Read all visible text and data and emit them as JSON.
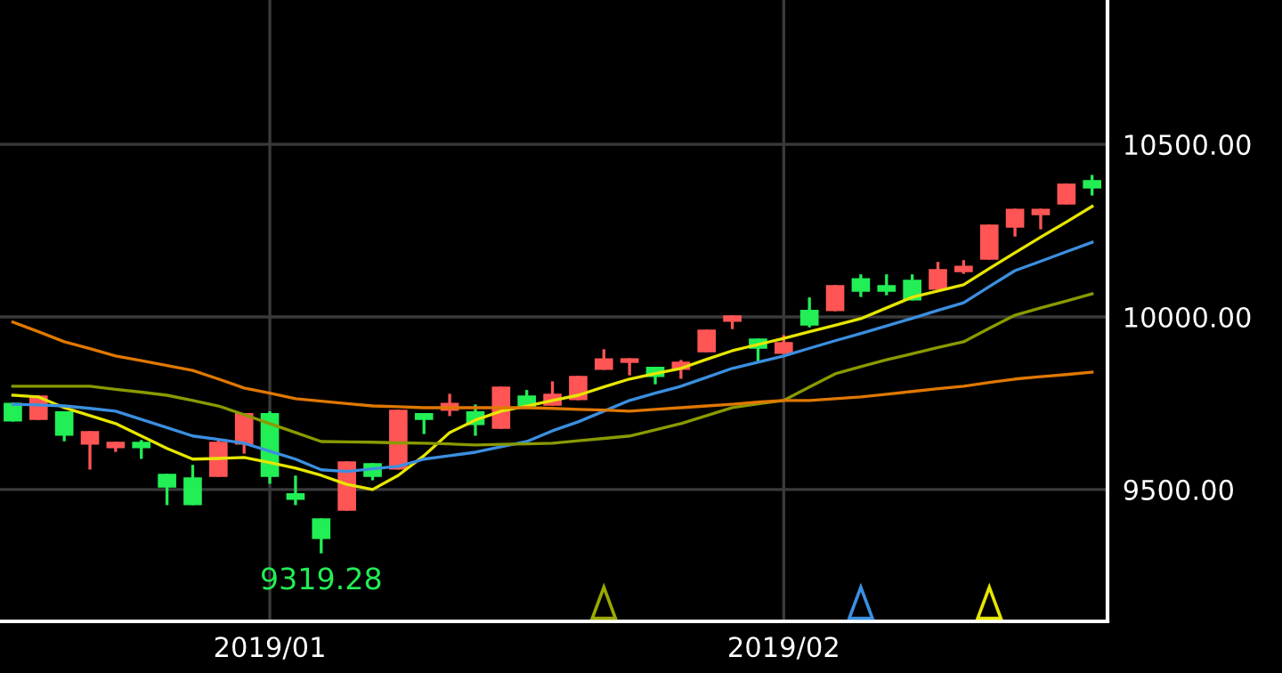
{
  "chart_data": {
    "type": "candlestick",
    "categories": [
      null,
      null,
      null,
      null,
      null,
      null,
      null,
      null,
      null,
      null,
      "2019/01",
      null,
      null,
      null,
      null,
      null,
      null,
      null,
      null,
      null,
      null,
      null,
      null,
      null,
      null,
      null,
      null,
      null,
      null,
      null,
      "2019/02",
      null,
      null,
      null,
      null,
      null,
      null,
      null,
      null,
      null,
      null,
      null,
      null
    ],
    "ohlc": [
      [
        9747,
        9747,
        9701,
        9701
      ],
      [
        9706,
        9768,
        9706,
        9768
      ],
      [
        9722,
        9722,
        9644,
        9660
      ],
      [
        9634,
        9665,
        9562,
        9665
      ],
      [
        9624,
        9634,
        9613,
        9634
      ],
      [
        9634,
        9639,
        9593,
        9624
      ],
      [
        9541,
        9541,
        9459,
        9510
      ],
      [
        9531,
        9567,
        9459,
        9459
      ],
      [
        9541,
        9639,
        9541,
        9634
      ],
      [
        9634,
        9717,
        9608,
        9717
      ],
      [
        9717,
        9722,
        9521,
        9541
      ],
      [
        9485,
        9536,
        9459,
        9474
      ],
      [
        9412,
        9412,
        9319.28,
        9361
      ],
      [
        9443,
        9577,
        9443,
        9577
      ],
      [
        9572,
        9572,
        9531,
        9541
      ],
      [
        9562,
        9727,
        9562,
        9727
      ],
      [
        9717,
        9717,
        9665,
        9706
      ],
      [
        9732,
        9773,
        9717,
        9747
      ],
      [
        9722,
        9742,
        9660,
        9691
      ],
      [
        9680,
        9794,
        9680,
        9794
      ],
      [
        9768,
        9784,
        9742,
        9742
      ],
      [
        9747,
        9809,
        9747,
        9773
      ],
      [
        9763,
        9825,
        9763,
        9825
      ],
      [
        9851,
        9902,
        9851,
        9876
      ],
      [
        9871,
        9876,
        9835,
        9876
      ],
      [
        9851,
        9851,
        9809,
        9830
      ],
      [
        9851,
        9871,
        9825,
        9866
      ],
      [
        9902,
        9959,
        9902,
        9959
      ],
      [
        9990,
        10000,
        9969,
        10000
      ],
      [
        9933,
        9933,
        9871,
        9912
      ],
      [
        9897,
        9943,
        9897,
        9923
      ],
      [
        10016,
        10052,
        9974,
        9979
      ],
      [
        10021,
        10088,
        10021,
        10088
      ],
      [
        10108,
        10119,
        10062,
        10077
      ],
      [
        10088,
        10119,
        10067,
        10077
      ],
      [
        10103,
        10119,
        10052,
        10052
      ],
      [
        10083,
        10155,
        10083,
        10134
      ],
      [
        10134,
        10160,
        10129,
        10144
      ],
      [
        10170,
        10263,
        10170,
        10263
      ],
      [
        10263,
        10309,
        10237,
        10309
      ],
      [
        10299,
        10309,
        10258,
        10309
      ],
      [
        10330,
        10382,
        10330,
        10382
      ],
      [
        10392,
        10407,
        10356,
        10376
      ]
    ],
    "series": [
      {
        "type": "line",
        "color": "#e6e600",
        "values": [
          9773,
          9768,
          9737,
          9714,
          9691,
          9655,
          9619,
          9588,
          9590,
          9593,
          9578,
          9562,
          9541,
          9515,
          9500,
          9541,
          9598,
          9665,
          9701,
          9727,
          9742,
          9758,
          9773,
          9797,
          9820,
          9836,
          9851,
          9877,
          9902,
          9920,
          9938,
          9957,
          9976,
          9995,
          10026,
          10057,
          10075,
          10093,
          10140,
          10186,
          10231,
          10275,
          10320
        ]
      },
      {
        "type": "line",
        "color": "#3b8fe0",
        "values": [
          9747,
          9745,
          9742,
          9735,
          9727,
          9703,
          9679,
          9655,
          9645,
          9634,
          9611,
          9588,
          9557,
          9552,
          9560,
          9567,
          9588,
          9598,
          9608,
          9624,
          9639,
          9670,
          9696,
          9727,
          9758,
          9779,
          9799,
          9825,
          9851,
          9869,
          9887,
          9909,
          9931,
          9952,
          9974,
          9996,
          10019,
          10041,
          10088,
          10134,
          10161,
          10189,
          10216
        ]
      },
      {
        "type": "line",
        "color": "#8a9a00",
        "values": [
          9799,
          9799,
          9799,
          9799,
          9790,
          9782,
          9773,
          9758,
          9742,
          9717,
          9691,
          9665,
          9639,
          9638,
          9637,
          9635,
          9634,
          9632,
          9629,
          9631,
          9632,
          9634,
          9641,
          9648,
          9655,
          9673,
          9691,
          9714,
          9737,
          9748,
          9758,
          9797,
          9835,
          9856,
          9876,
          9893,
          9911,
          9928,
          9967,
          10005,
          10026,
          10046,
          10067
        ]
      },
      {
        "type": "line",
        "color": "#e07800",
        "values": [
          9985,
          9957,
          9928,
          9908,
          9887,
          9873,
          9859,
          9845,
          9820,
          9794,
          9779,
          9763,
          9756,
          9749,
          9742,
          9740,
          9737,
          9737,
          9737,
          9737,
          9737,
          9735,
          9732,
          9730,
          9727,
          9732,
          9737,
          9742,
          9747,
          9753,
          9758,
          9758,
          9763,
          9768,
          9776,
          9784,
          9792,
          9799,
          9810,
          9820,
          9827,
          9833,
          9840
        ]
      }
    ],
    "ylim": [
      9118,
      10918
    ],
    "yticks": [
      {
        "value": 9500,
        "label": "9500.00"
      },
      {
        "value": 10000,
        "label": "10000.00"
      },
      {
        "value": 10500,
        "label": "10500.00"
      }
    ],
    "grid": true,
    "annotations": [
      {
        "text": "9319.28",
        "y": 9319.28
      }
    ]
  }
}
